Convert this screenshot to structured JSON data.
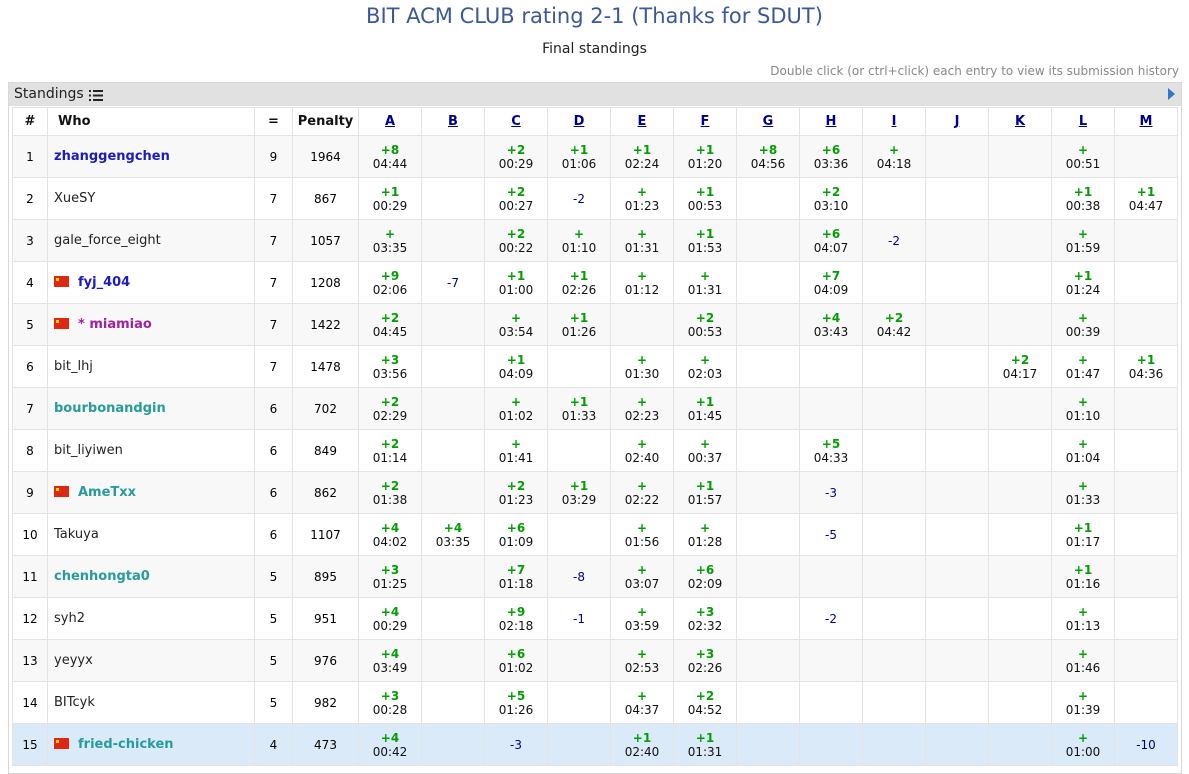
{
  "title": "BIT ACM CLUB rating 2-1 (Thanks for SDUT)",
  "subtitle": "Final standings",
  "hint": "Double click (or ctrl+click) each entry to view its submission history",
  "panel": {
    "title": "Standings"
  },
  "headers": {
    "rank": "#",
    "who": "Who",
    "solved": "=",
    "penalty": "Penalty"
  },
  "problems": [
    "A",
    "B",
    "C",
    "D",
    "E",
    "F",
    "G",
    "H",
    "I",
    "J",
    "K",
    "L",
    "M"
  ],
  "rows": [
    {
      "rank": "1",
      "name": "zhanggengchen",
      "flag": false,
      "style": "blue",
      "solved": "9",
      "penalty": "1964",
      "cells": [
        [
          "+8",
          "04:44"
        ],
        null,
        [
          "+2",
          "00:29"
        ],
        [
          "+1",
          "01:06"
        ],
        [
          "+1",
          "02:24"
        ],
        [
          "+1",
          "01:20"
        ],
        [
          "+8",
          "04:56"
        ],
        [
          "+6",
          "03:36"
        ],
        [
          "+",
          "04:18"
        ],
        null,
        null,
        [
          "+",
          "00:51"
        ],
        null
      ]
    },
    {
      "rank": "2",
      "name": "XueSY",
      "flag": false,
      "style": "plain",
      "solved": "7",
      "penalty": "867",
      "cells": [
        [
          "+1",
          "00:29"
        ],
        null,
        [
          "+2",
          "00:27"
        ],
        "-2",
        [
          "+",
          "01:23"
        ],
        [
          "+1",
          "00:53"
        ],
        null,
        [
          "+2",
          "03:10"
        ],
        null,
        null,
        null,
        [
          "+1",
          "00:38"
        ],
        [
          "+1",
          "04:47"
        ]
      ]
    },
    {
      "rank": "3",
      "name": "gale_force_eight",
      "flag": false,
      "style": "plain",
      "solved": "7",
      "penalty": "1057",
      "cells": [
        [
          "+",
          "03:35"
        ],
        null,
        [
          "+2",
          "00:22"
        ],
        [
          "+",
          "01:10"
        ],
        [
          "+",
          "01:31"
        ],
        [
          "+1",
          "01:53"
        ],
        null,
        [
          "+6",
          "04:07"
        ],
        "-2",
        null,
        null,
        [
          "+",
          "01:59"
        ],
        null
      ]
    },
    {
      "rank": "4",
      "name": "fyj_404",
      "flag": true,
      "style": "blue",
      "solved": "7",
      "penalty": "1208",
      "cells": [
        [
          "+9",
          "02:06"
        ],
        "-7",
        [
          "+1",
          "01:00"
        ],
        [
          "+1",
          "02:26"
        ],
        [
          "+",
          "01:12"
        ],
        [
          "+",
          "01:31"
        ],
        null,
        [
          "+7",
          "04:09"
        ],
        null,
        null,
        null,
        [
          "+1",
          "01:24"
        ],
        null
      ]
    },
    {
      "rank": "5",
      "name": "* miamiao",
      "flag": true,
      "style": "purple",
      "solved": "7",
      "penalty": "1422",
      "cells": [
        [
          "+2",
          "04:45"
        ],
        null,
        [
          "+",
          "03:54"
        ],
        [
          "+1",
          "01:26"
        ],
        null,
        [
          "+2",
          "00:53"
        ],
        null,
        [
          "+4",
          "03:43"
        ],
        [
          "+2",
          "04:42"
        ],
        null,
        null,
        [
          "+",
          "00:39"
        ],
        null
      ]
    },
    {
      "rank": "6",
      "name": "bit_lhj",
      "flag": false,
      "style": "plain",
      "solved": "7",
      "penalty": "1478",
      "cells": [
        [
          "+3",
          "03:56"
        ],
        null,
        [
          "+1",
          "04:09"
        ],
        null,
        [
          "+",
          "01:30"
        ],
        [
          "+",
          "02:03"
        ],
        null,
        null,
        null,
        null,
        [
          "+2",
          "04:17"
        ],
        [
          "+",
          "01:47"
        ],
        [
          "+1",
          "04:36"
        ]
      ]
    },
    {
      "rank": "7",
      "name": "bourbonandgin",
      "flag": false,
      "style": "teal",
      "solved": "6",
      "penalty": "702",
      "cells": [
        [
          "+2",
          "02:29"
        ],
        null,
        [
          "+",
          "01:02"
        ],
        [
          "+1",
          "01:33"
        ],
        [
          "+",
          "02:23"
        ],
        [
          "+1",
          "01:45"
        ],
        null,
        null,
        null,
        null,
        null,
        [
          "+",
          "01:10"
        ],
        null
      ]
    },
    {
      "rank": "8",
      "name": "bit_liyiwen",
      "flag": false,
      "style": "plain",
      "solved": "6",
      "penalty": "849",
      "cells": [
        [
          "+2",
          "01:14"
        ],
        null,
        [
          "+",
          "01:41"
        ],
        null,
        [
          "+",
          "02:40"
        ],
        [
          "+",
          "00:37"
        ],
        null,
        [
          "+5",
          "04:33"
        ],
        null,
        null,
        null,
        [
          "+",
          "01:04"
        ],
        null
      ]
    },
    {
      "rank": "9",
      "name": "AmeTxx",
      "flag": true,
      "style": "teal",
      "solved": "6",
      "penalty": "862",
      "cells": [
        [
          "+2",
          "01:38"
        ],
        null,
        [
          "+2",
          "01:23"
        ],
        [
          "+1",
          "03:29"
        ],
        [
          "+",
          "02:22"
        ],
        [
          "+1",
          "01:57"
        ],
        null,
        "-3",
        null,
        null,
        null,
        [
          "+",
          "01:33"
        ],
        null
      ]
    },
    {
      "rank": "10",
      "name": "Takuya",
      "flag": false,
      "style": "plain",
      "solved": "6",
      "penalty": "1107",
      "cells": [
        [
          "+4",
          "04:02"
        ],
        [
          "+4",
          "03:35"
        ],
        [
          "+6",
          "01:09"
        ],
        null,
        [
          "+",
          "01:56"
        ],
        [
          "+",
          "01:28"
        ],
        null,
        "-5",
        null,
        null,
        null,
        [
          "+1",
          "01:17"
        ],
        null
      ]
    },
    {
      "rank": "11",
      "name": "chenhongta0",
      "flag": false,
      "style": "teal",
      "solved": "5",
      "penalty": "895",
      "cells": [
        [
          "+3",
          "01:25"
        ],
        null,
        [
          "+7",
          "01:18"
        ],
        "-8",
        [
          "+",
          "03:07"
        ],
        [
          "+6",
          "02:09"
        ],
        null,
        null,
        null,
        null,
        null,
        [
          "+1",
          "01:16"
        ],
        null
      ]
    },
    {
      "rank": "12",
      "name": "syh2",
      "flag": false,
      "style": "plain",
      "solved": "5",
      "penalty": "951",
      "cells": [
        [
          "+4",
          "00:29"
        ],
        null,
        [
          "+9",
          "02:18"
        ],
        "-1",
        [
          "+",
          "03:59"
        ],
        [
          "+3",
          "02:32"
        ],
        null,
        "-2",
        null,
        null,
        null,
        [
          "+",
          "01:13"
        ],
        null
      ]
    },
    {
      "rank": "13",
      "name": "yeyyx",
      "flag": false,
      "style": "plain",
      "solved": "5",
      "penalty": "976",
      "cells": [
        [
          "+4",
          "03:49"
        ],
        null,
        [
          "+6",
          "01:02"
        ],
        null,
        [
          "+",
          "02:53"
        ],
        [
          "+3",
          "02:26"
        ],
        null,
        null,
        null,
        null,
        null,
        [
          "+",
          "01:46"
        ],
        null
      ]
    },
    {
      "rank": "14",
      "name": "BITcyk",
      "flag": false,
      "style": "plain",
      "solved": "5",
      "penalty": "982",
      "cells": [
        [
          "+3",
          "00:28"
        ],
        null,
        [
          "+5",
          "01:26"
        ],
        null,
        [
          "+",
          "04:37"
        ],
        [
          "+2",
          "04:52"
        ],
        null,
        null,
        null,
        null,
        null,
        [
          "+",
          "01:39"
        ],
        null
      ]
    },
    {
      "rank": "15",
      "name": "fried-chicken",
      "flag": true,
      "style": "teal",
      "solved": "4",
      "penalty": "473",
      "cells": [
        [
          "+4",
          "00:42"
        ],
        null,
        "-3",
        null,
        [
          "+1",
          "02:40"
        ],
        [
          "+1",
          "01:31"
        ],
        null,
        null,
        null,
        null,
        null,
        [
          "+",
          "01:00"
        ],
        "-10"
      ]
    }
  ]
}
